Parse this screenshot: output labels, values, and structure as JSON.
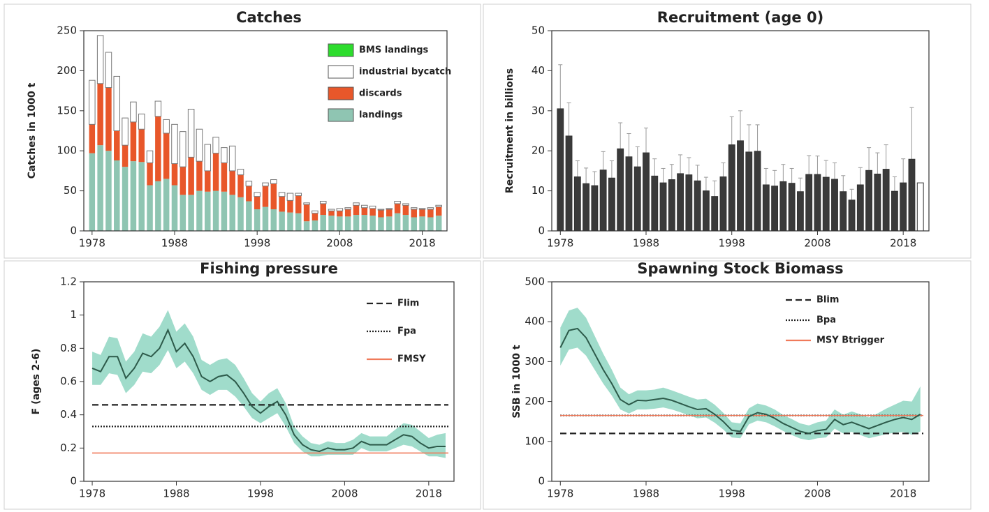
{
  "chart_data": [
    {
      "type": "stacked_bar",
      "title": "Catches",
      "ylabel": "Catches in 1000 t",
      "x": [
        1978,
        1979,
        1980,
        1981,
        1982,
        1983,
        1984,
        1985,
        1986,
        1987,
        1988,
        1989,
        1990,
        1991,
        1992,
        1993,
        1994,
        1995,
        1996,
        1997,
        1998,
        1999,
        2000,
        2001,
        2002,
        2003,
        2004,
        2005,
        2006,
        2007,
        2008,
        2009,
        2010,
        2011,
        2012,
        2013,
        2014,
        2015,
        2016,
        2017,
        2018,
        2019,
        2020
      ],
      "series": [
        {
          "name": "landings",
          "color": "#8fc5b2",
          "values": [
            97,
            107,
            100,
            88,
            80,
            87,
            86,
            57,
            62,
            65,
            57,
            45,
            45,
            50,
            49,
            50,
            49,
            45,
            42,
            37,
            27,
            30,
            27,
            24,
            23,
            22,
            12,
            13,
            20,
            19,
            18,
            18,
            20,
            20,
            19,
            17,
            18,
            22,
            20,
            17,
            18,
            17,
            19
          ]
        },
        {
          "name": "discards",
          "color": "#e8572a",
          "values": [
            36,
            77,
            79,
            37,
            27,
            49,
            41,
            28,
            81,
            57,
            27,
            35,
            47,
            37,
            26,
            47,
            36,
            30,
            28,
            19,
            16,
            26,
            32,
            19,
            15,
            22,
            21,
            9,
            14,
            6,
            7,
            9,
            12,
            9,
            9,
            9,
            9,
            12,
            12,
            10,
            9,
            10,
            11
          ]
        },
        {
          "name": "industrial bycatch",
          "color": "#ffffff",
          "values": [
            55,
            60,
            44,
            68,
            34,
            25,
            19,
            15,
            19,
            17,
            49,
            44,
            60,
            40,
            33,
            20,
            19,
            31,
            7,
            6,
            5,
            4,
            5,
            5,
            9,
            3,
            2,
            3,
            3,
            2,
            3,
            2,
            3,
            3,
            3,
            1,
            1,
            3,
            2,
            2,
            1,
            2,
            2
          ]
        },
        {
          "name": "BMS landings",
          "color": "#2ddc2d",
          "values": [
            0,
            0,
            0,
            0,
            0,
            0,
            0,
            0,
            0,
            0,
            0,
            0,
            0,
            0,
            0,
            0,
            0,
            0,
            0,
            0,
            0,
            0,
            0,
            0,
            0,
            0,
            0,
            0,
            0,
            0,
            0,
            0,
            0,
            0,
            0,
            0,
            0,
            0,
            0,
            0,
            0,
            0,
            0
          ]
        }
      ],
      "xlim": [
        1977,
        2021
      ],
      "xticks": [
        1978,
        1988,
        1998,
        2008,
        2018
      ],
      "ylim": [
        0,
        250
      ],
      "yticks": [
        0,
        50,
        100,
        150,
        200,
        250
      ]
    },
    {
      "type": "error_bar",
      "title": "Recruitment (age 0)",
      "ylabel": "Recruitment in billions",
      "x": [
        1978,
        1979,
        1980,
        1981,
        1982,
        1983,
        1984,
        1985,
        1986,
        1987,
        1988,
        1989,
        1990,
        1991,
        1992,
        1993,
        1994,
        1995,
        1996,
        1997,
        1998,
        1999,
        2000,
        2001,
        2002,
        2003,
        2004,
        2005,
        2006,
        2007,
        2008,
        2009,
        2010,
        2011,
        2012,
        2013,
        2014,
        2015,
        2016,
        2017,
        2018,
        2019,
        2020
      ],
      "values": [
        30.5,
        23.7,
        13.5,
        11.8,
        11.3,
        15.2,
        13.2,
        20.5,
        18.5,
        16,
        19.5,
        13.7,
        12,
        12.8,
        14.3,
        14,
        12.5,
        10,
        8.6,
        13.5,
        21.5,
        22.5,
        19.7,
        19.9,
        11.5,
        11.2,
        12.3,
        11.9,
        9.8,
        14.1,
        14.1,
        13.4,
        12.9,
        9.8,
        7.7,
        11.5,
        15.1,
        14.2,
        15.4,
        9.9,
        12,
        17.9,
        12
      ],
      "upper": [
        41.5,
        32,
        17.5,
        15.7,
        14.8,
        19.8,
        17.5,
        27,
        24.3,
        21,
        25.7,
        18,
        15.6,
        16.6,
        19,
        18.3,
        16.4,
        13.4,
        12.5,
        17,
        28.5,
        30,
        26.5,
        26.5,
        15.6,
        15.1,
        16.6,
        15.6,
        13.2,
        18.8,
        18.7,
        17.6,
        17,
        13.8,
        10.4,
        15.8,
        20.8,
        19.5,
        21.5,
        13.5,
        18,
        30.8,
        null
      ],
      "color": "#3a3a3a",
      "final_color": "#ffffff",
      "error_color": "#999999",
      "xlim": [
        1977,
        2021
      ],
      "xticks": [
        1978,
        1988,
        1998,
        2008,
        2018
      ],
      "ylim": [
        0,
        50
      ],
      "yticks": [
        0,
        10,
        20,
        30,
        40,
        50
      ]
    },
    {
      "type": "line",
      "title": "Fishing pressure",
      "ylabel": "F (ages 2-6)",
      "x": [
        1978,
        1979,
        1980,
        1981,
        1982,
        1983,
        1984,
        1985,
        1986,
        1987,
        1988,
        1989,
        1990,
        1991,
        1992,
        1993,
        1994,
        1995,
        1996,
        1997,
        1998,
        1999,
        2000,
        2001,
        2002,
        2003,
        2004,
        2005,
        2006,
        2007,
        2008,
        2009,
        2010,
        2011,
        2012,
        2013,
        2014,
        2015,
        2016,
        2017,
        2018,
        2019,
        2020
      ],
      "values": [
        0.68,
        0.66,
        0.75,
        0.75,
        0.62,
        0.68,
        0.77,
        0.75,
        0.8,
        0.91,
        0.78,
        0.83,
        0.75,
        0.63,
        0.6,
        0.63,
        0.64,
        0.6,
        0.53,
        0.45,
        0.41,
        0.45,
        0.48,
        0.4,
        0.28,
        0.22,
        0.19,
        0.18,
        0.2,
        0.19,
        0.19,
        0.2,
        0.24,
        0.22,
        0.22,
        0.22,
        0.25,
        0.28,
        0.27,
        0.23,
        0.2,
        0.21,
        0.21
      ],
      "lower": [
        0.58,
        0.58,
        0.65,
        0.64,
        0.53,
        0.58,
        0.66,
        0.65,
        0.7,
        0.79,
        0.68,
        0.72,
        0.65,
        0.55,
        0.52,
        0.55,
        0.55,
        0.51,
        0.45,
        0.38,
        0.35,
        0.38,
        0.41,
        0.33,
        0.23,
        0.18,
        0.15,
        0.15,
        0.16,
        0.16,
        0.16,
        0.16,
        0.2,
        0.18,
        0.18,
        0.18,
        0.2,
        0.22,
        0.21,
        0.18,
        0.15,
        0.15,
        0.14
      ],
      "upper": [
        0.78,
        0.76,
        0.87,
        0.86,
        0.72,
        0.78,
        0.89,
        0.87,
        0.93,
        1.03,
        0.9,
        0.95,
        0.87,
        0.73,
        0.7,
        0.73,
        0.74,
        0.7,
        0.62,
        0.53,
        0.48,
        0.53,
        0.56,
        0.47,
        0.33,
        0.27,
        0.23,
        0.22,
        0.24,
        0.23,
        0.23,
        0.25,
        0.29,
        0.27,
        0.27,
        0.27,
        0.31,
        0.35,
        0.34,
        0.3,
        0.26,
        0.28,
        0.29
      ],
      "color": "#2d5a4a",
      "band_color": "#8fd6c2",
      "reference_lines": [
        {
          "name": "Flim",
          "value": 0.46,
          "color": "#222222",
          "style": "dashed"
        },
        {
          "name": "Fpa",
          "value": 0.33,
          "color": "#222222",
          "style": "dotted"
        },
        {
          "name": "FMSY",
          "value": 0.17,
          "color": "#f07a5a",
          "style": "solid"
        }
      ],
      "xlim": [
        1977,
        2021
      ],
      "xticks": [
        1978,
        1988,
        1998,
        2008,
        2018
      ],
      "ylim": [
        0,
        1.2
      ],
      "yticks": [
        0,
        0.2,
        0.4,
        0.6,
        0.8,
        1,
        1.2
      ]
    },
    {
      "type": "line",
      "title": "Spawning Stock Biomass",
      "ylabel": "SSB in 1000 t",
      "x": [
        1978,
        1979,
        1980,
        1981,
        1982,
        1983,
        1984,
        1985,
        1986,
        1987,
        1988,
        1989,
        1990,
        1991,
        1992,
        1993,
        1994,
        1995,
        1996,
        1997,
        1998,
        1999,
        2000,
        2001,
        2002,
        2003,
        2004,
        2005,
        2006,
        2007,
        2008,
        2009,
        2010,
        2011,
        2012,
        2013,
        2014,
        2015,
        2016,
        2017,
        2018,
        2019,
        2020
      ],
      "values": [
        335,
        378,
        383,
        360,
        320,
        280,
        245,
        205,
        192,
        203,
        202,
        205,
        208,
        203,
        195,
        187,
        180,
        182,
        168,
        150,
        128,
        125,
        162,
        172,
        168,
        158,
        145,
        135,
        125,
        120,
        127,
        130,
        155,
        142,
        148,
        140,
        132,
        140,
        148,
        155,
        160,
        155,
        168
      ],
      "lower": [
        290,
        330,
        335,
        315,
        280,
        245,
        215,
        180,
        170,
        180,
        180,
        182,
        185,
        180,
        173,
        165,
        158,
        160,
        147,
        130,
        110,
        108,
        143,
        152,
        148,
        138,
        126,
        116,
        107,
        103,
        108,
        110,
        132,
        120,
        124,
        116,
        108,
        113,
        118,
        122,
        124,
        117,
        125
      ],
      "upper": [
        385,
        428,
        435,
        410,
        365,
        320,
        280,
        235,
        218,
        228,
        228,
        230,
        235,
        228,
        220,
        212,
        205,
        207,
        192,
        172,
        148,
        145,
        183,
        195,
        190,
        180,
        166,
        156,
        145,
        140,
        148,
        152,
        180,
        167,
        175,
        168,
        160,
        170,
        182,
        192,
        202,
        200,
        238
      ],
      "color": "#2d5a4a",
      "band_color": "#8fd6c2",
      "reference_lines": [
        {
          "name": "Blim",
          "value": 120,
          "color": "#222222",
          "style": "dashed"
        },
        {
          "name": "Bpa",
          "value": 165,
          "color": "#222222",
          "style": "dotted"
        },
        {
          "name": "MSY Btrigger",
          "value": 165,
          "color": "#f07a5a",
          "style": "solid"
        }
      ],
      "xlim": [
        1977,
        2021
      ],
      "xticks": [
        1978,
        1988,
        1998,
        2008,
        2018
      ],
      "ylim": [
        0,
        500
      ],
      "yticks": [
        0,
        100,
        200,
        300,
        400,
        500
      ]
    }
  ]
}
